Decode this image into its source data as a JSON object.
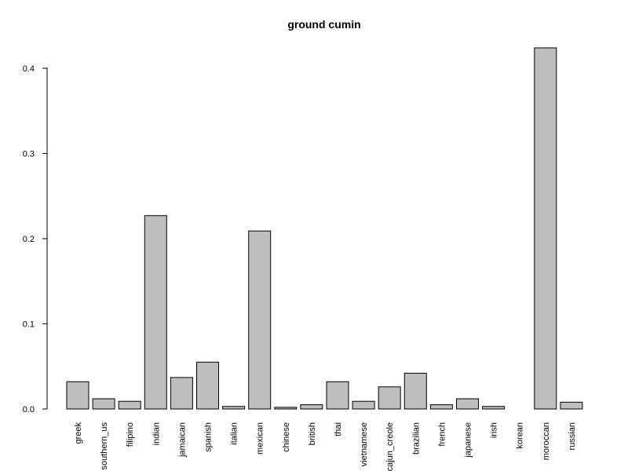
{
  "chart_data": {
    "type": "bar",
    "title": "ground cumin",
    "xlabel": "",
    "ylabel": "",
    "ylim": [
      0,
      0.42
    ],
    "y_ticks": [
      0.0,
      0.1,
      0.2,
      0.3,
      0.4
    ],
    "y_tick_labels": [
      "0.0",
      "0.1",
      "0.2",
      "0.3",
      "0.4"
    ],
    "grid": false,
    "legend": "none",
    "bar_fill": "#bebebe",
    "bar_stroke": "#000000",
    "categories": [
      "greek",
      "southern_us",
      "filipino",
      "indian",
      "jamaican",
      "spanish",
      "italian",
      "mexican",
      "chinese",
      "british",
      "thai",
      "vietnamese",
      "cajun_creole",
      "brazilian",
      "french",
      "japanese",
      "irish",
      "korean",
      "moroccan",
      "russian"
    ],
    "values": [
      0.032,
      0.012,
      0.009,
      0.227,
      0.037,
      0.055,
      0.003,
      0.209,
      0.002,
      0.005,
      0.032,
      0.009,
      0.026,
      0.042,
      0.005,
      0.012,
      0.003,
      0.0,
      0.424,
      0.008
    ]
  }
}
